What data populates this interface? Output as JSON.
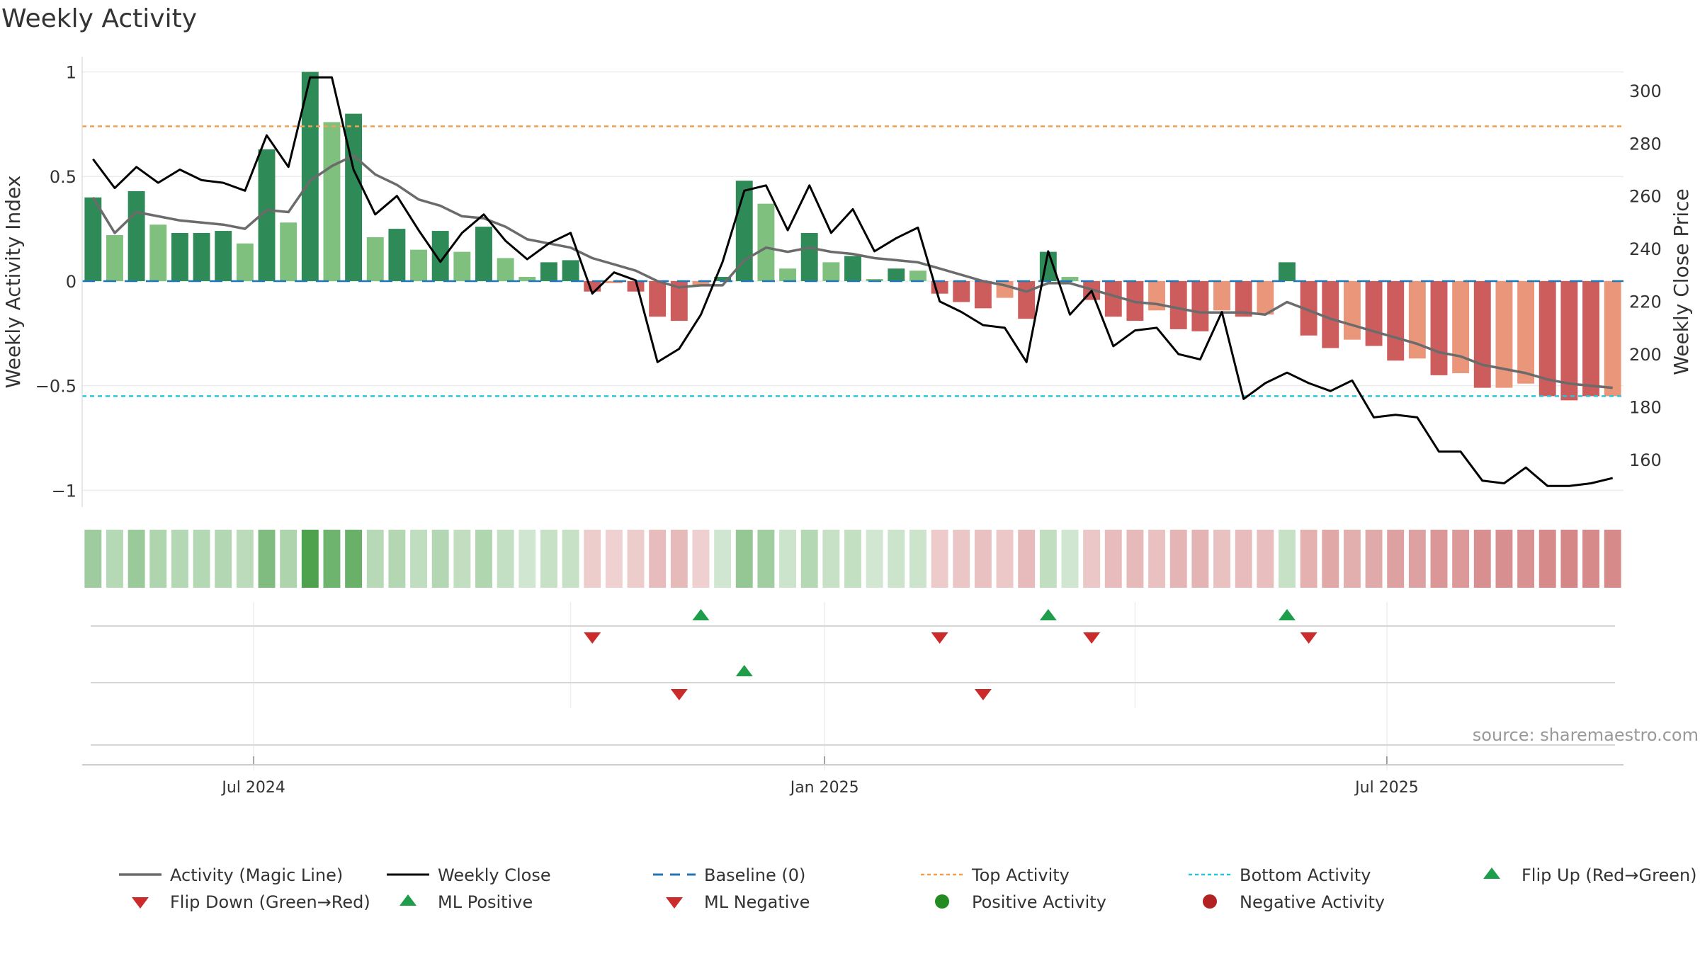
{
  "chart_data": {
    "type": "bar",
    "title": "Weekly Activity",
    "ylabel": "Weekly Activity Index",
    "y2label": "Weekly Close Price",
    "source": "source: sharemaestro.com",
    "ylim": [
      -1.08,
      1.1
    ],
    "y2lim": [
      142,
      315
    ],
    "yticks": [
      {
        "v": 1,
        "label": "1"
      },
      {
        "v": 0.5,
        "label": "0.5"
      },
      {
        "v": 0,
        "label": "0"
      },
      {
        "v": -0.5,
        "label": "−0.5"
      },
      {
        "v": -1,
        "label": "−1"
      }
    ],
    "y2ticks": [
      {
        "v": 300,
        "label": "300"
      },
      {
        "v": 280,
        "label": "280"
      },
      {
        "v": 260,
        "label": "260"
      },
      {
        "v": 240,
        "label": "240"
      },
      {
        "v": 220,
        "label": "220"
      },
      {
        "v": 200,
        "label": "200"
      },
      {
        "v": 180,
        "label": "180"
      },
      {
        "v": 160,
        "label": "160"
      }
    ],
    "xticks": [
      {
        "week": 7.4,
        "label": "Jul 2024"
      },
      {
        "week": 33.7,
        "label": "Jan 2025"
      },
      {
        "week": 59.6,
        "label": "Jul 2025"
      }
    ],
    "top_activity": 0.74,
    "bottom_activity": -0.55,
    "activity": [
      0.4,
      0.22,
      0.43,
      0.27,
      0.23,
      0.23,
      0.24,
      0.18,
      0.63,
      0.28,
      1.0,
      0.76,
      0.8,
      0.21,
      0.25,
      0.15,
      0.24,
      0.14,
      0.26,
      0.11,
      0.02,
      0.09,
      0.1,
      -0.05,
      -0.01,
      -0.05,
      -0.17,
      -0.19,
      -0.02,
      0.02,
      0.48,
      0.37,
      0.06,
      0.23,
      0.09,
      0.12,
      0.01,
      0.06,
      0.05,
      -0.06,
      -0.1,
      -0.13,
      -0.08,
      -0.18,
      0.14,
      0.02,
      -0.09,
      -0.17,
      -0.19,
      -0.14,
      -0.23,
      -0.24,
      -0.14,
      -0.17,
      -0.16,
      0.09,
      -0.26,
      -0.32,
      -0.28,
      -0.31,
      -0.38,
      -0.37,
      -0.45,
      -0.44,
      -0.51,
      -0.51,
      -0.49,
      -0.55,
      -0.57,
      -0.55,
      -0.55
    ],
    "strong": [
      1,
      0,
      1,
      0,
      1,
      1,
      1,
      0,
      1,
      0,
      1,
      0,
      1,
      0,
      1,
      0,
      1,
      0,
      1,
      0,
      0,
      1,
      1,
      1,
      0,
      1,
      1,
      1,
      0,
      1,
      1,
      0,
      0,
      1,
      0,
      1,
      0,
      1,
      0,
      1,
      1,
      1,
      0,
      1,
      1,
      0,
      1,
      1,
      1,
      0,
      1,
      1,
      0,
      1,
      0,
      1,
      1,
      1,
      0,
      1,
      1,
      0,
      1,
      0,
      1,
      0,
      0,
      1,
      1,
      1,
      0
    ],
    "magic_line": [
      0.4,
      0.23,
      0.33,
      0.31,
      0.29,
      0.28,
      0.27,
      0.25,
      0.34,
      0.33,
      0.48,
      0.55,
      0.6,
      0.51,
      0.46,
      0.39,
      0.36,
      0.31,
      0.3,
      0.26,
      0.2,
      0.18,
      0.16,
      0.11,
      0.08,
      0.05,
      0.0,
      -0.03,
      -0.02,
      -0.02,
      0.1,
      0.16,
      0.14,
      0.16,
      0.14,
      0.13,
      0.11,
      0.1,
      0.09,
      0.06,
      0.03,
      0.0,
      -0.02,
      -0.05,
      -0.01,
      -0.01,
      -0.04,
      -0.07,
      -0.1,
      -0.11,
      -0.13,
      -0.15,
      -0.15,
      -0.15,
      -0.16,
      -0.1,
      -0.14,
      -0.18,
      -0.21,
      -0.24,
      -0.27,
      -0.3,
      -0.34,
      -0.36,
      -0.4,
      -0.42,
      -0.44,
      -0.47,
      -0.49,
      -0.5,
      -0.51
    ],
    "weekly_close": [
      274,
      263,
      271,
      265,
      270,
      266,
      265,
      262,
      283,
      271,
      305,
      305,
      270,
      253,
      260,
      247,
      235,
      246,
      253,
      243,
      236,
      242,
      246,
      223,
      231,
      228,
      197,
      202,
      215,
      235,
      262,
      264,
      247,
      264,
      246,
      255,
      239,
      244,
      248,
      220,
      216,
      211,
      210,
      197,
      239,
      215,
      224,
      203,
      209,
      210,
      200,
      198,
      216,
      183,
      189,
      193,
      189,
      186,
      190,
      176,
      177,
      176,
      163,
      163,
      152,
      151,
      157,
      150,
      150,
      151,
      153
    ],
    "flips_row1": [
      {
        "week": 23,
        "dir": "down"
      },
      {
        "week": 28,
        "dir": "up"
      },
      {
        "week": 39,
        "dir": "down"
      },
      {
        "week": 44,
        "dir": "up"
      },
      {
        "week": 46,
        "dir": "down"
      },
      {
        "week": 55,
        "dir": "up"
      },
      {
        "week": 56,
        "dir": "down"
      }
    ],
    "flips_row2": [
      {
        "week": 27,
        "dir": "down"
      },
      {
        "week": 30,
        "dir": "up"
      },
      {
        "week": 41,
        "dir": "down"
      }
    ],
    "colors": {
      "green_strong": "#2e8b57",
      "green_light": "#7fc07f",
      "red_strong": "#cd5c5c",
      "red_light": "#e9967a",
      "magic_line": "#6b6b6b",
      "close": "#000000",
      "baseline": "#1f77b4",
      "top": "#f0a050",
      "bottom": "#26c6da",
      "up": "#1e9e4a",
      "down": "#cc2b2b",
      "positive": "#228b22",
      "negative": "#b22222"
    },
    "legend": [
      {
        "key": "magic_line",
        "label": "Activity (Magic Line)"
      },
      {
        "key": "close",
        "label": "Weekly Close"
      },
      {
        "key": "baseline",
        "label": "Baseline (0)"
      },
      {
        "key": "top",
        "label": "Top Activity"
      },
      {
        "key": "bottom",
        "label": "Bottom Activity"
      },
      {
        "key": "flip_up",
        "label": "Flip Up (Red→Green)"
      },
      {
        "key": "flip_down",
        "label": "Flip Down (Green→Red)"
      },
      {
        "key": "ml_positive",
        "label": "ML Positive"
      },
      {
        "key": "ml_negative",
        "label": "ML Negative"
      },
      {
        "key": "positive",
        "label": "Positive Activity"
      },
      {
        "key": "negative",
        "label": "Negative Activity"
      }
    ]
  }
}
